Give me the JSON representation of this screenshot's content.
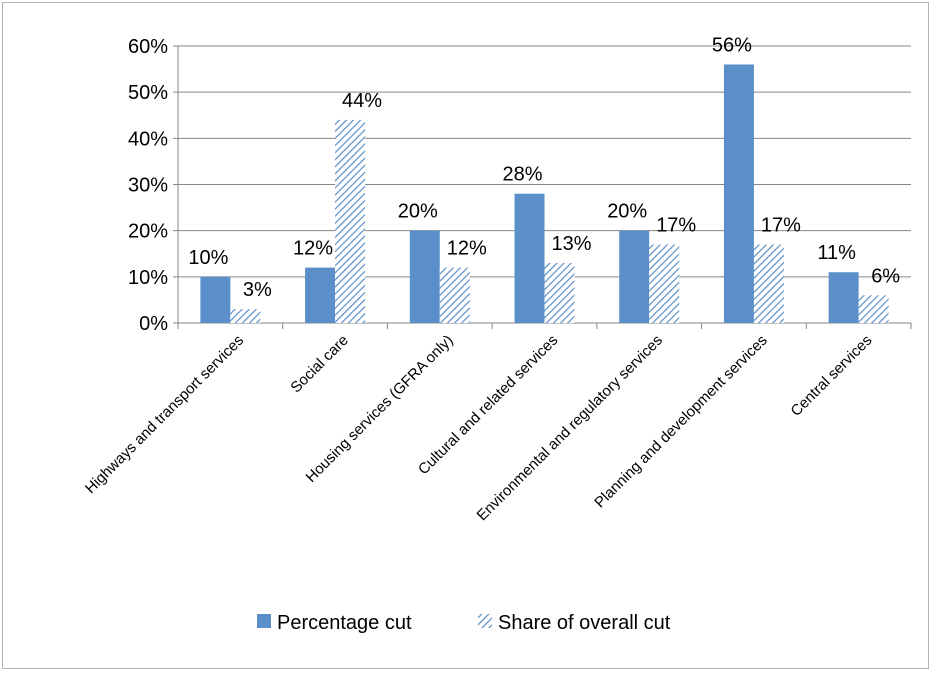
{
  "chart_data": {
    "type": "bar",
    "title": "",
    "xlabel": "",
    "ylabel": "",
    "ylim": [
      0,
      60
    ],
    "y_ticks": [
      "0%",
      "10%",
      "20%",
      "30%",
      "40%",
      "50%",
      "60%"
    ],
    "grid": true,
    "legend_position": "bottom",
    "categories": [
      "Highways and transport services",
      "Social care",
      "Housing services (GFRA only)",
      "Cultural and related services",
      "Environmental and regulatory services",
      "Planning and development services",
      "Central services"
    ],
    "series": [
      {
        "name": "Percentage cut",
        "values": [
          10,
          12,
          20,
          28,
          20,
          56,
          11
        ],
        "labels": [
          "10%",
          "12%",
          "20%",
          "28%",
          "20%",
          "56%",
          "11%"
        ],
        "color": "#5b8fc9",
        "pattern": "solid"
      },
      {
        "name": "Share of overall cut",
        "values": [
          3,
          44,
          12,
          13,
          17,
          17,
          6
        ],
        "labels": [
          "3%",
          "44%",
          "12%",
          "13%",
          "17%",
          "17%",
          "6%"
        ],
        "color": "#5b8fc9",
        "pattern": "diagonal-hatch"
      }
    ]
  }
}
